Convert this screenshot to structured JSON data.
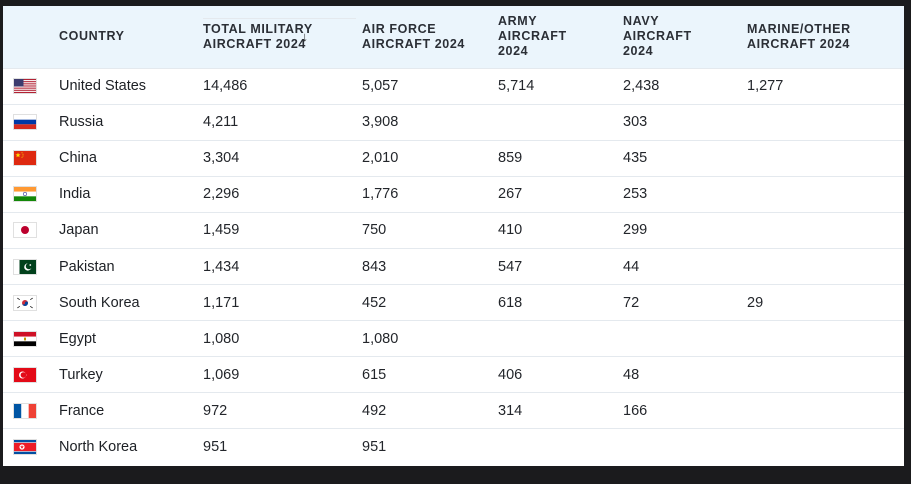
{
  "table": {
    "headers": {
      "country": "COUNTRY",
      "total_line1": "TOTAL MILITARY",
      "total_line2": "AIRCRAFT 2024",
      "air_line1": "AIR FORCE",
      "air_line2": "AIRCRAFT 2024",
      "army_line1": "ARMY",
      "army_line2": "AIRCRAFT",
      "army_line3": "2024",
      "navy_line1": "NAVY",
      "navy_line2": "AIRCRAFT",
      "navy_line3": "2024",
      "marine_line1": "MARINE/OTHER",
      "marine_line2": "AIRCRAFT 2024",
      "sort_icon": "arrow-down-icon"
    },
    "rows": [
      {
        "flag": "us-flag-icon",
        "country": "United States",
        "total": "14,486",
        "air": "5,057",
        "army": "5,714",
        "navy": "2,438",
        "marine": "1,277"
      },
      {
        "flag": "russia-flag-icon",
        "country": "Russia",
        "total": "4,211",
        "air": "3,908",
        "army": "",
        "navy": "303",
        "marine": ""
      },
      {
        "flag": "china-flag-icon",
        "country": "China",
        "total": "3,304",
        "air": "2,010",
        "army": "859",
        "navy": "435",
        "marine": ""
      },
      {
        "flag": "india-flag-icon",
        "country": "India",
        "total": "2,296",
        "air": "1,776",
        "army": "267",
        "navy": "253",
        "marine": ""
      },
      {
        "flag": "japan-flag-icon",
        "country": "Japan",
        "total": "1,459",
        "air": "750",
        "army": "410",
        "navy": "299",
        "marine": ""
      },
      {
        "flag": "pakistan-flag-icon",
        "country": "Pakistan",
        "total": "1,434",
        "air": "843",
        "army": "547",
        "navy": "44",
        "marine": ""
      },
      {
        "flag": "south-korea-flag-icon",
        "country": "South Korea",
        "total": "1,171",
        "air": "452",
        "army": "618",
        "navy": "72",
        "marine": "29"
      },
      {
        "flag": "egypt-flag-icon",
        "country": "Egypt",
        "total": "1,080",
        "air": "1,080",
        "army": "",
        "navy": "",
        "marine": ""
      },
      {
        "flag": "turkey-flag-icon",
        "country": "Turkey",
        "total": "1,069",
        "air": "615",
        "army": "406",
        "navy": "48",
        "marine": ""
      },
      {
        "flag": "france-flag-icon",
        "country": "France",
        "total": "972",
        "air": "492",
        "army": "314",
        "navy": "166",
        "marine": ""
      },
      {
        "flag": "north-korea-flag-icon",
        "country": "North Korea",
        "total": "951",
        "air": "951",
        "army": "",
        "navy": "",
        "marine": ""
      }
    ]
  },
  "colors": {
    "header_bg": "#ebf5fc",
    "row_border": "#e4e9ee",
    "page_bg": "#1b1b1d"
  }
}
